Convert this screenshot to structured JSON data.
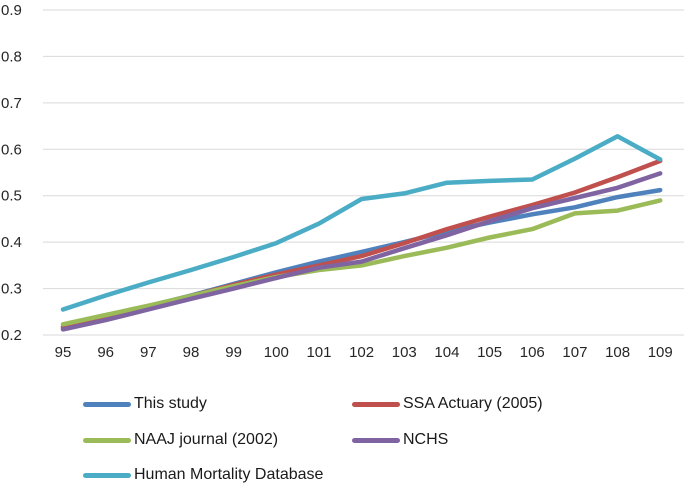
{
  "chart_data": {
    "type": "line",
    "title": "",
    "xlabel": "",
    "ylabel": "",
    "x_categories": [
      "95",
      "96",
      "97",
      "98",
      "99",
      "100",
      "101",
      "102",
      "103",
      "104",
      "105",
      "106",
      "107",
      "108",
      "109"
    ],
    "ylim": [
      0.2,
      0.9
    ],
    "y_tick_labels": [
      "0.2",
      "0.3",
      "0.4",
      "0.5",
      "0.6",
      "0.7",
      "0.8",
      "0.9"
    ],
    "grid": true,
    "legend_position": "bottom",
    "series": [
      {
        "name": "This study",
        "color": "#4F81BD",
        "values": [
          0.218,
          0.24,
          0.262,
          0.285,
          0.31,
          0.335,
          0.358,
          0.379,
          0.4,
          0.423,
          0.442,
          0.46,
          0.475,
          0.497,
          0.512
        ]
      },
      {
        "name": "SSA Actuary (2005)",
        "color": "#C0504D",
        "values": [
          0.215,
          0.238,
          0.261,
          0.284,
          0.308,
          0.33,
          0.35,
          0.37,
          0.398,
          0.428,
          0.455,
          0.48,
          0.507,
          0.54,
          0.575
        ]
      },
      {
        "name": "NAAJ journal (2002)",
        "color": "#9BBB59",
        "values": [
          0.223,
          0.243,
          0.263,
          0.284,
          0.305,
          0.325,
          0.34,
          0.35,
          0.37,
          0.388,
          0.41,
          0.428,
          0.462,
          0.468,
          0.49
        ]
      },
      {
        "name": "NCHS",
        "color": "#8064A2",
        "values": [
          0.212,
          0.232,
          0.255,
          0.278,
          0.3,
          0.323,
          0.345,
          0.358,
          0.387,
          0.415,
          0.445,
          0.473,
          0.495,
          0.517,
          0.548
        ]
      },
      {
        "name": "Human Mortality Database",
        "color": "#4BACC6",
        "values": [
          0.255,
          0.285,
          0.313,
          0.34,
          0.368,
          0.398,
          0.44,
          0.493,
          0.505,
          0.528,
          0.532,
          0.535,
          0.58,
          0.628,
          0.578
        ]
      }
    ]
  },
  "colors": {
    "background": "#FFFFFF",
    "gridline": "#D9D9D9",
    "axis_text": "#262626",
    "legend_text": "#1A1A1A"
  }
}
